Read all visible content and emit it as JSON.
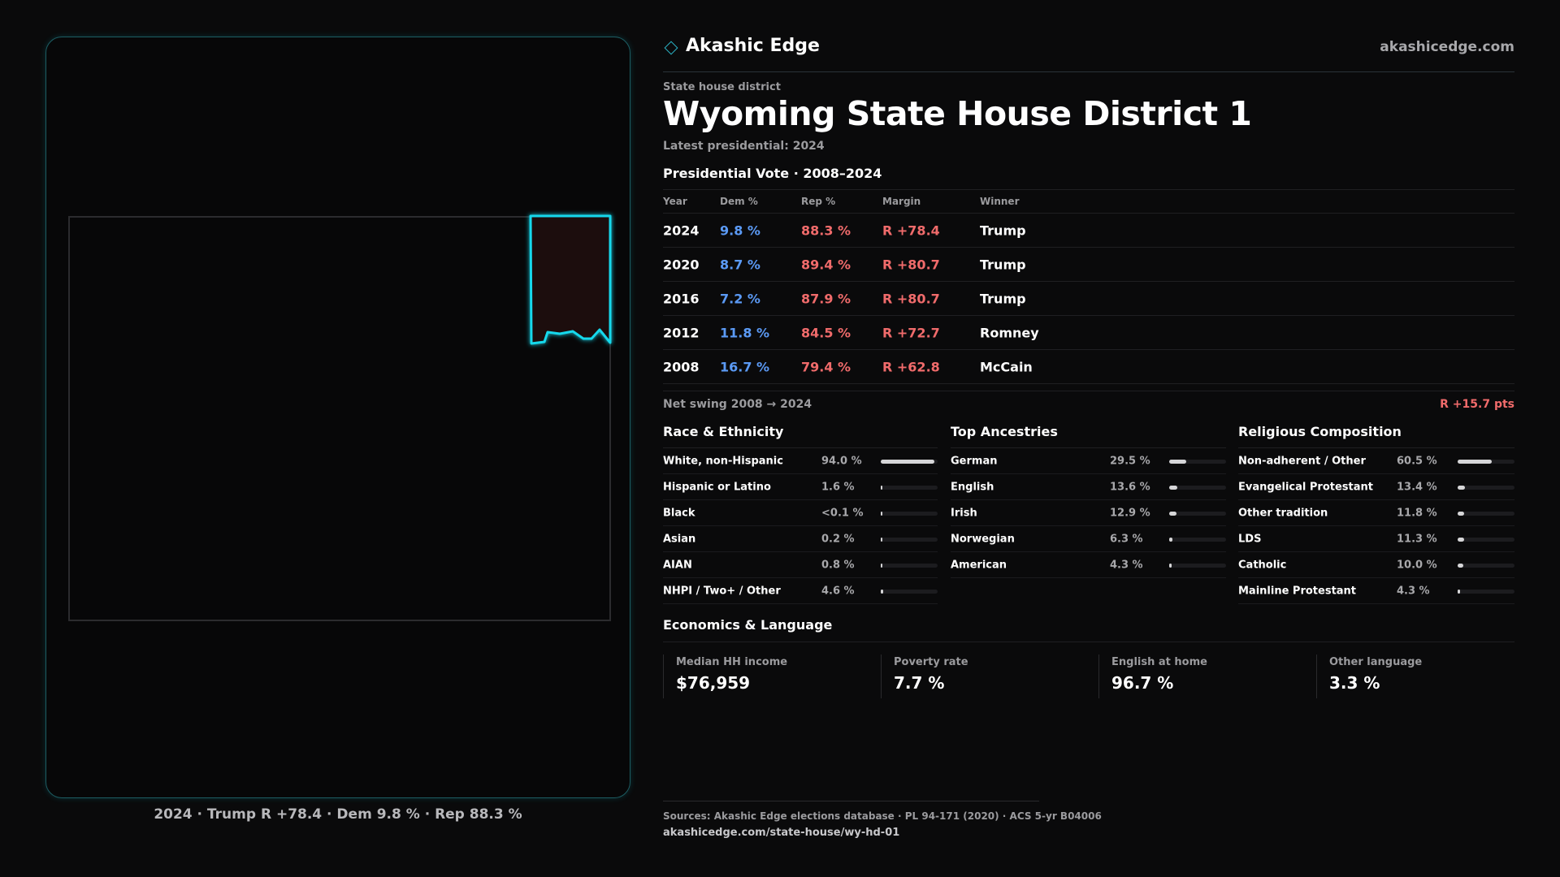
{
  "brand": {
    "name": "Akashic Edge",
    "logo_icon": "diamond-outline-icon",
    "site": "akashicedge.com",
    "accent": "#2bb7c9"
  },
  "header": {
    "kind": "State house district",
    "title": "Wyoming State House District 1",
    "latest": "Latest presidential: 2024"
  },
  "map": {
    "caption": "2024 · Trump R +78.4 · Dem 9.8 % · Rep 88.3 %",
    "district_fill": "#1b0e0f",
    "district_stroke": "#12d8ec",
    "state_outline": "#2b2b2e"
  },
  "presidential": {
    "heading": "Presidential Vote · 2008–2024",
    "columns": {
      "year": "Year",
      "dem": "Dem %",
      "rep": "Rep %",
      "margin": "Margin",
      "winner": "Winner"
    },
    "rows": [
      {
        "year": "2024",
        "dem": "9.8 %",
        "rep": "88.3 %",
        "margin": "R +78.4",
        "winner": "Trump"
      },
      {
        "year": "2020",
        "dem": "8.7 %",
        "rep": "89.4 %",
        "margin": "R +80.7",
        "winner": "Trump"
      },
      {
        "year": "2016",
        "dem": "7.2 %",
        "rep": "87.9 %",
        "margin": "R +80.7",
        "winner": "Trump"
      },
      {
        "year": "2012",
        "dem": "11.8 %",
        "rep": "84.5 %",
        "margin": "R +72.7",
        "winner": "Romney"
      },
      {
        "year": "2008",
        "dem": "16.7 %",
        "rep": "79.4 %",
        "margin": "R +62.8",
        "winner": "McCain"
      }
    ],
    "dem_color": "#5b9af5",
    "rep_color": "#f06b6b",
    "swing_label": "Net swing 2008 → 2024",
    "swing_value": "R +15.7 pts"
  },
  "race": {
    "heading": "Race & Ethnicity",
    "items": [
      {
        "label": "White, non-Hispanic",
        "pct": "94.0 %",
        "value": 94.0
      },
      {
        "label": "Hispanic or Latino",
        "pct": "1.6 %",
        "value": 1.6
      },
      {
        "label": "Black",
        "pct": "<0.1 %",
        "value": 0.05
      },
      {
        "label": "Asian",
        "pct": "0.2 %",
        "value": 0.2
      },
      {
        "label": "AIAN",
        "pct": "0.8 %",
        "value": 0.8
      },
      {
        "label": "NHPI / Two+ / Other",
        "pct": "4.6 %",
        "value": 4.6
      }
    ]
  },
  "ancestry": {
    "heading": "Top Ancestries",
    "items": [
      {
        "label": "German",
        "pct": "29.5 %",
        "value": 29.5
      },
      {
        "label": "English",
        "pct": "13.6 %",
        "value": 13.6
      },
      {
        "label": "Irish",
        "pct": "12.9 %",
        "value": 12.9
      },
      {
        "label": "Norwegian",
        "pct": "6.3 %",
        "value": 6.3
      },
      {
        "label": "American",
        "pct": "4.3 %",
        "value": 4.3
      }
    ]
  },
  "religion": {
    "heading": "Religious Composition",
    "items": [
      {
        "label": "Non-adherent / Other",
        "pct": "60.5 %",
        "value": 60.5
      },
      {
        "label": "Evangelical Protestant",
        "pct": "13.4 %",
        "value": 13.4
      },
      {
        "label": "Other tradition",
        "pct": "11.8 %",
        "value": 11.8
      },
      {
        "label": "LDS",
        "pct": "11.3 %",
        "value": 11.3
      },
      {
        "label": "Catholic",
        "pct": "10.0 %",
        "value": 10.0
      },
      {
        "label": "Mainline Protestant",
        "pct": "4.3 %",
        "value": 4.3
      }
    ]
  },
  "economics": {
    "heading": "Economics & Language",
    "items": [
      {
        "label": "Median HH income",
        "value": "$76,959"
      },
      {
        "label": "Poverty rate",
        "value": "7.7 %"
      },
      {
        "label": "English at home",
        "value": "96.7 %"
      },
      {
        "label": "Other language",
        "value": "3.3 %"
      }
    ]
  },
  "footer": {
    "sources": "Sources: Akashic Edge elections database · PL 94-171 (2020) · ACS 5-yr B04006",
    "url": "akashicedge.com/state-house/wy-hd-01"
  }
}
